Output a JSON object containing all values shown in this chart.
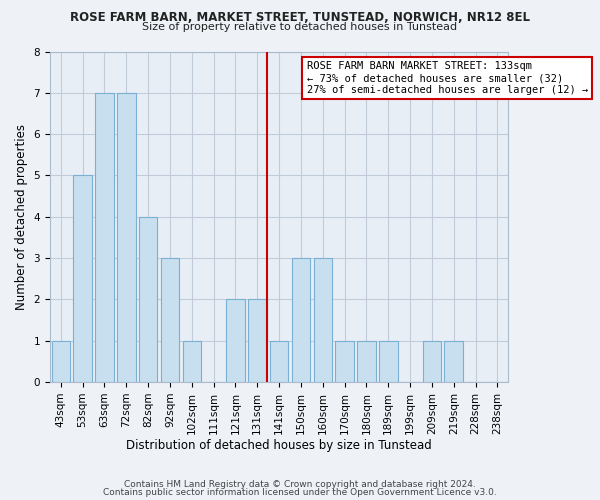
{
  "title": "ROSE FARM BARN, MARKET STREET, TUNSTEAD, NORWICH, NR12 8EL",
  "subtitle": "Size of property relative to detached houses in Tunstead",
  "xlabel": "Distribution of detached houses by size in Tunstead",
  "ylabel": "Number of detached properties",
  "bar_labels": [
    "43sqm",
    "53sqm",
    "63sqm",
    "72sqm",
    "82sqm",
    "92sqm",
    "102sqm",
    "111sqm",
    "121sqm",
    "131sqm",
    "141sqm",
    "150sqm",
    "160sqm",
    "170sqm",
    "180sqm",
    "189sqm",
    "199sqm",
    "209sqm",
    "219sqm",
    "228sqm",
    "238sqm"
  ],
  "bar_heights": [
    1,
    5,
    7,
    7,
    4,
    3,
    1,
    0,
    2,
    2,
    1,
    3,
    3,
    1,
    1,
    1,
    0,
    1,
    1,
    0,
    0
  ],
  "bar_color": "#c8dff0",
  "bar_edge_color": "#7ab0d4",
  "vline_x_index": 9,
  "vline_color": "#cc0000",
  "annotation_line1": "ROSE FARM BARN MARKET STREET: 133sqm",
  "annotation_line2": "← 73% of detached houses are smaller (32)",
  "annotation_line3": "27% of semi-detached houses are larger (12) →",
  "annotation_box_color": "#ffffff",
  "annotation_box_edge_color": "#cc0000",
  "ylim": [
    0,
    8
  ],
  "yticks": [
    0,
    1,
    2,
    3,
    4,
    5,
    6,
    7,
    8
  ],
  "footer1": "Contains HM Land Registry data © Crown copyright and database right 2024.",
  "footer2": "Contains public sector information licensed under the Open Government Licence v3.0.",
  "bg_color": "#eef2f7",
  "plot_bg_color": "#e8eef5",
  "grid_color": "#c0ccda",
  "title_fontsize": 8.5,
  "subtitle_fontsize": 8.0,
  "axis_label_fontsize": 8.5,
  "tick_fontsize": 7.5,
  "footer_fontsize": 6.5
}
